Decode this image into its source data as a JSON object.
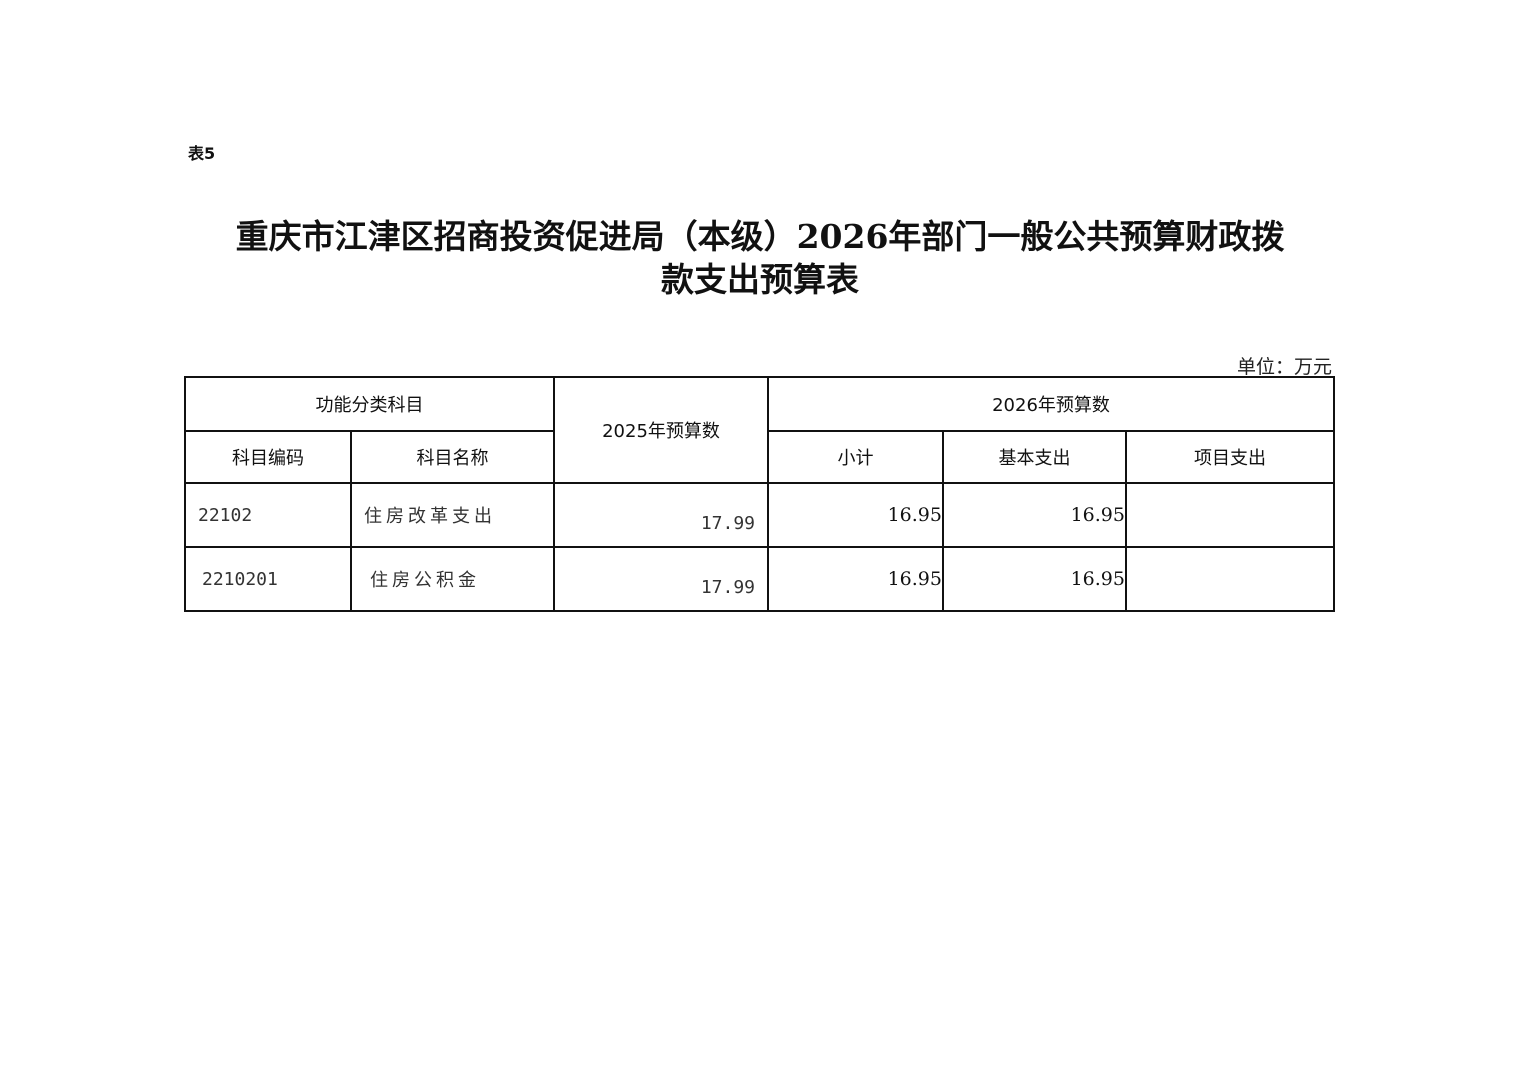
{
  "table_label": "表5",
  "title_line1": "重庆市江津区招商投资促进局（本级）2026年部门一般公共预算财政拨",
  "title_line2": "款支出预算表",
  "unit": "单位：万元",
  "headers": {
    "group1": "功能分类科目",
    "code": "科目编码",
    "name": "科目名称",
    "prev": "2025年预算数",
    "group2": "2026年预算数",
    "subtotal": "小计",
    "basic": "基本支出",
    "project": "项目支出"
  },
  "rows": [
    {
      "code": "22102",
      "name": "住房改革支出",
      "prev": "17.99",
      "subtotal": "16.95",
      "basic": "16.95",
      "project": ""
    },
    {
      "code": "2210201",
      "name": "住房公积金",
      "prev": "17.99",
      "subtotal": "16.95",
      "basic": "16.95",
      "project": ""
    }
  ]
}
